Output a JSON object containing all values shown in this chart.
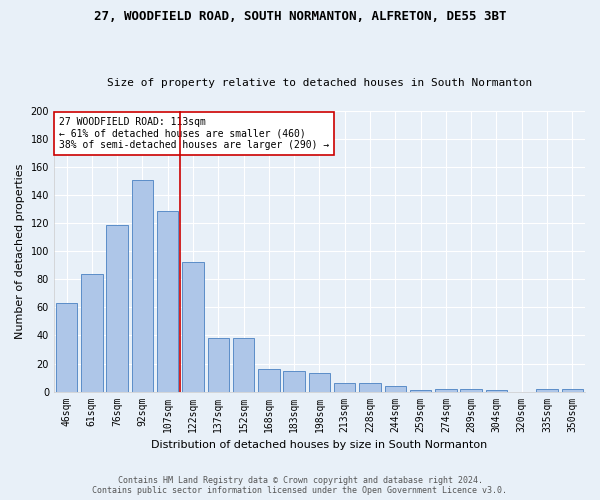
{
  "title": "27, WOODFIELD ROAD, SOUTH NORMANTON, ALFRETON, DE55 3BT",
  "subtitle": "Size of property relative to detached houses in South Normanton",
  "xlabel": "Distribution of detached houses by size in South Normanton",
  "ylabel": "Number of detached properties",
  "footnote1": "Contains HM Land Registry data © Crown copyright and database right 2024.",
  "footnote2": "Contains public sector information licensed under the Open Government Licence v3.0.",
  "bar_labels": [
    "46sqm",
    "61sqm",
    "76sqm",
    "92sqm",
    "107sqm",
    "122sqm",
    "137sqm",
    "152sqm",
    "168sqm",
    "183sqm",
    "198sqm",
    "213sqm",
    "228sqm",
    "244sqm",
    "259sqm",
    "274sqm",
    "289sqm",
    "304sqm",
    "320sqm",
    "335sqm",
    "350sqm"
  ],
  "bar_values": [
    63,
    84,
    119,
    151,
    129,
    92,
    38,
    38,
    16,
    15,
    13,
    6,
    6,
    4,
    1,
    2,
    2,
    1,
    0,
    2,
    2
  ],
  "bar_color": "#aec6e8",
  "bar_edge_color": "#5b8dc8",
  "bg_color": "#e8f0f8",
  "grid_color": "#ffffff",
  "vline_color": "#cc0000",
  "vline_x_idx": 4.5,
  "annotation_text": "27 WOODFIELD ROAD: 113sqm\n← 61% of detached houses are smaller (460)\n38% of semi-detached houses are larger (290) →",
  "annotation_box_color": "#ffffff",
  "annotation_box_edge": "#cc0000",
  "ylim": [
    0,
    200
  ],
  "yticks": [
    0,
    20,
    40,
    60,
    80,
    100,
    120,
    140,
    160,
    180,
    200
  ],
  "title_fontsize": 9,
  "subtitle_fontsize": 8,
  "ylabel_fontsize": 8,
  "xlabel_fontsize": 8,
  "tick_fontsize": 7,
  "annot_fontsize": 7,
  "footnote_fontsize": 6
}
